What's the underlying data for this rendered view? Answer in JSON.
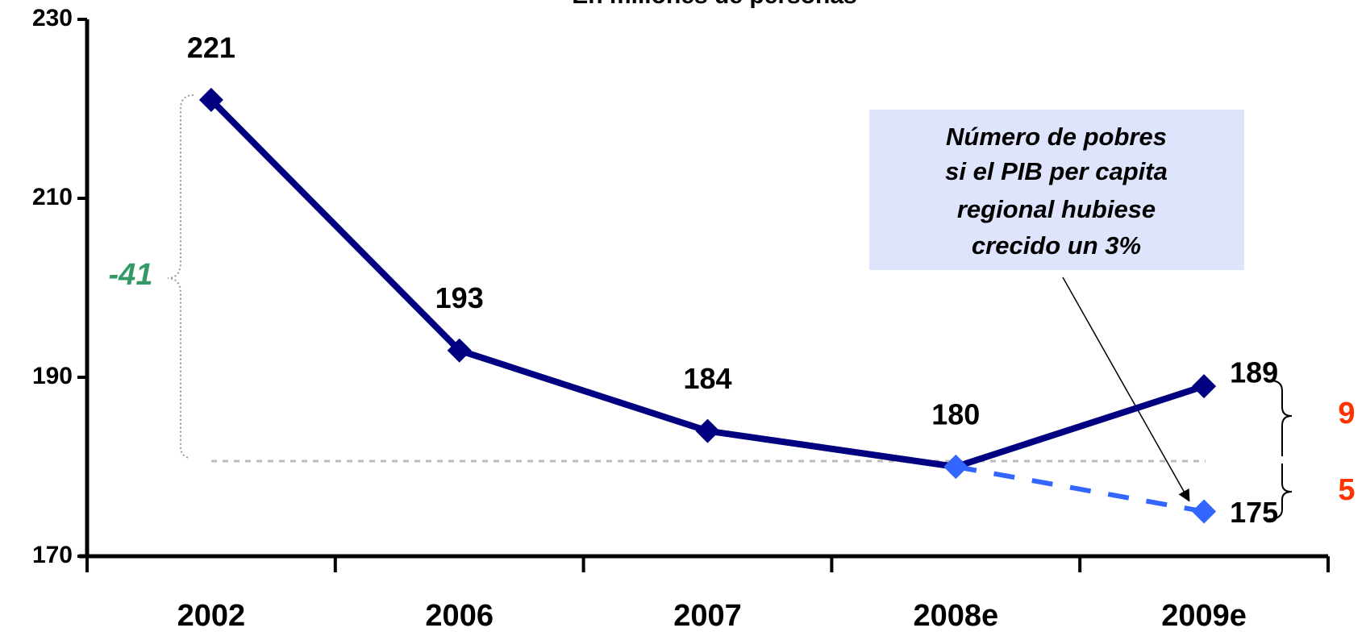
{
  "chart_data": {
    "type": "line",
    "title": "En millones de personas",
    "categories": [
      "2002",
      "2006",
      "2007",
      "2008e",
      "2009e"
    ],
    "series": [
      {
        "color": "#000080",
        "values": [
          221,
          193,
          184,
          180,
          189
        ],
        "dashed": false
      },
      {
        "color": "#3366ff",
        "values": [
          null,
          null,
          null,
          180,
          175
        ],
        "dashed": true
      }
    ],
    "ylim": [
      170,
      230
    ],
    "yticks": [
      170,
      190,
      210,
      230
    ],
    "grid": false,
    "annotations": {
      "total_change": "-41",
      "gap_up": "9",
      "gap_down": "5",
      "callout": [
        "Número de pobres",
        "si el PIB per capita",
        "regional hubiese",
        "crecido un 3%"
      ]
    }
  }
}
